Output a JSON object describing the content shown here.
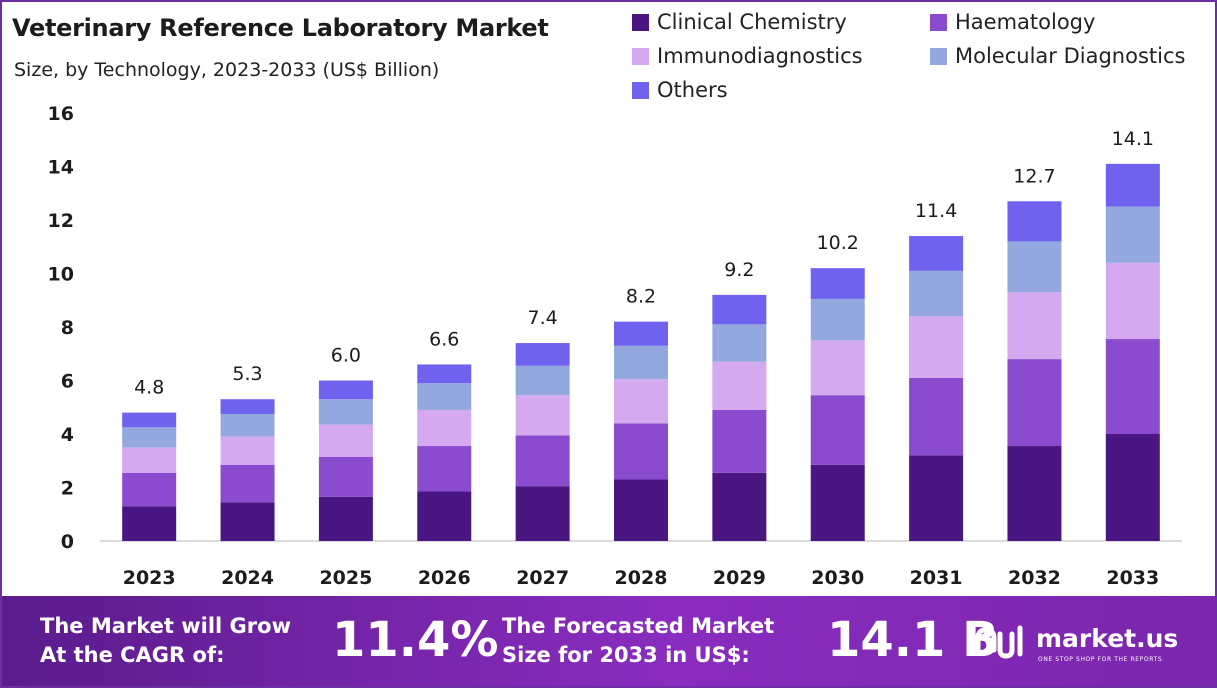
{
  "title": "Veterinary Reference Laboratory Market",
  "subtitle": "Size, by Technology, 2023-2033 (US$ Billion)",
  "legend": [
    {
      "name": "Clinical Chemistry",
      "color": "#4a1782"
    },
    {
      "name": "Haematology",
      "color": "#8a4bcf"
    },
    {
      "name": "Immunodiagnostics",
      "color": "#d4a9ef"
    },
    {
      "name": "Molecular Diagnostics",
      "color": "#92a8de"
    },
    {
      "name": "Others",
      "color": "#6f62ee"
    }
  ],
  "chart_data": {
    "type": "bar",
    "stacked": true,
    "categories": [
      "2023",
      "2024",
      "2025",
      "2026",
      "2027",
      "2028",
      "2029",
      "2030",
      "2031",
      "2032",
      "2033"
    ],
    "series": [
      {
        "name": "Clinical Chemistry",
        "values": [
          1.3,
          1.45,
          1.65,
          1.85,
          2.05,
          2.3,
          2.55,
          2.85,
          3.2,
          3.55,
          4.0
        ]
      },
      {
        "name": "Haematology",
        "values": [
          1.25,
          1.4,
          1.5,
          1.7,
          1.9,
          2.1,
          2.35,
          2.6,
          2.9,
          3.25,
          3.55
        ]
      },
      {
        "name": "Immunodiagnostics",
        "values": [
          0.95,
          1.05,
          1.2,
          1.35,
          1.5,
          1.65,
          1.8,
          2.05,
          2.3,
          2.5,
          2.85
        ]
      },
      {
        "name": "Molecular Diagnostics",
        "values": [
          0.75,
          0.85,
          0.95,
          1.0,
          1.1,
          1.25,
          1.4,
          1.55,
          1.7,
          1.9,
          2.1
        ]
      },
      {
        "name": "Others",
        "values": [
          0.55,
          0.55,
          0.7,
          0.7,
          0.85,
          0.9,
          1.1,
          1.15,
          1.3,
          1.5,
          1.6
        ]
      }
    ],
    "totals": [
      4.8,
      5.3,
      6.0,
      6.6,
      7.4,
      8.2,
      9.2,
      10.2,
      11.4,
      12.7,
      14.1
    ],
    "total_labels": [
      "4.8",
      "5.3",
      "6.0",
      "6.6",
      "7.4",
      "8.2",
      "9.2",
      "10.2",
      "11.4",
      "12.7",
      "14.1"
    ],
    "y_ticks": [
      0,
      2,
      4,
      6,
      8,
      10,
      12,
      14,
      16
    ],
    "ylim": [
      0,
      16
    ],
    "grid": false,
    "legend_position": "top-right"
  },
  "banner": {
    "cagr_text_line1": "The Market will Grow",
    "cagr_text_line2": "At the CAGR of:",
    "cagr_value": "11.4%",
    "forecast_text_line1": "The Forecasted Market",
    "forecast_text_line2": "Size for 2033 in US$:",
    "forecast_value": "14.1 B",
    "brand": "market.us",
    "tagline": "ONE STOP SHOP FOR THE REPORTS"
  }
}
